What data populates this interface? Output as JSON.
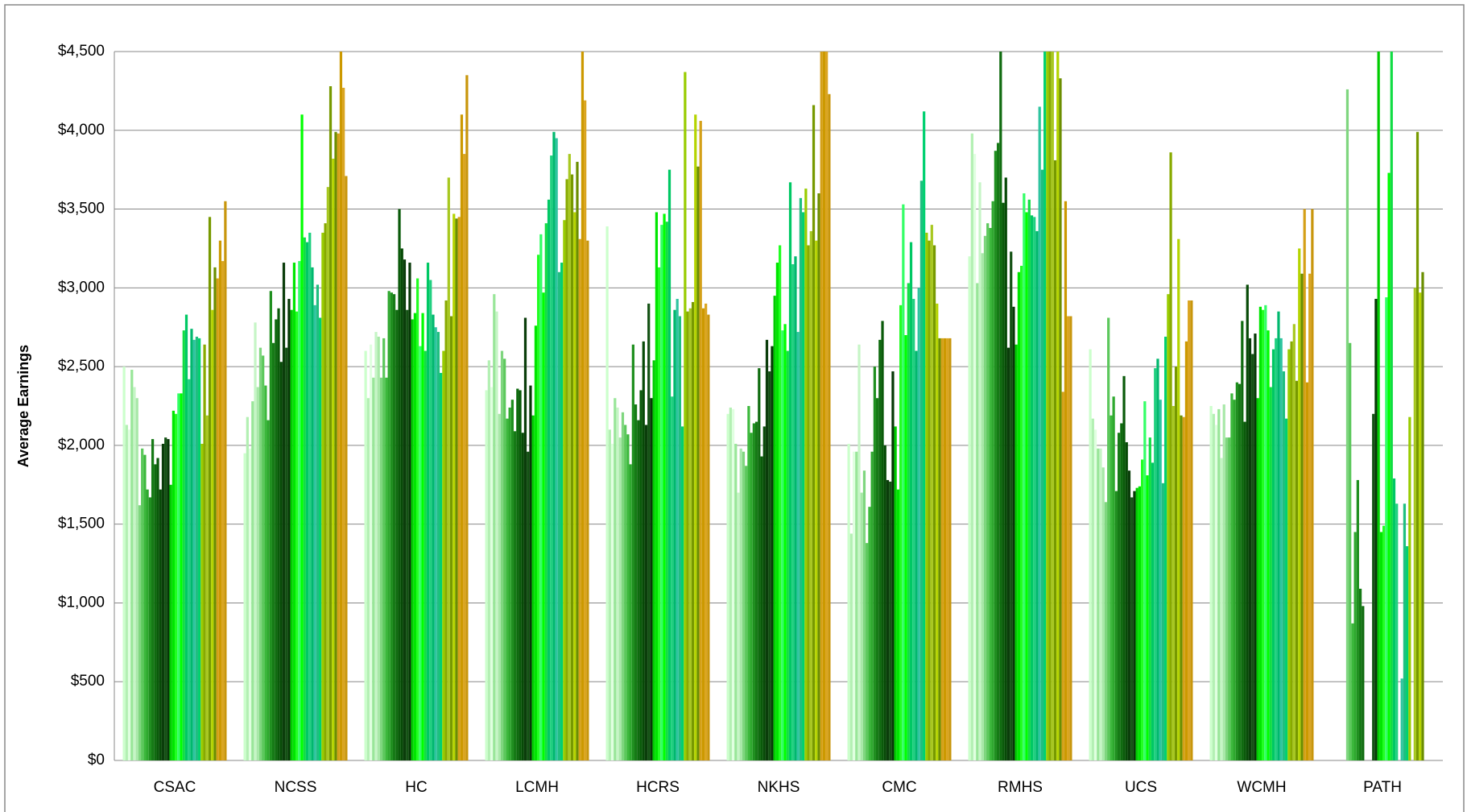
{
  "chart_data": {
    "type": "bar",
    "y_label": "Average Earnings",
    "categories": [
      "CSAC",
      "NCSS",
      "HC",
      "LCMH",
      "HCRS",
      "NKHS",
      "CMC",
      "RMHS",
      "UCS",
      "WCMH",
      "PATH"
    ],
    "ylim": [
      0,
      4500
    ],
    "yticks": [
      {
        "value": 0,
        "label": "$0"
      },
      {
        "value": 500,
        "label": "$500"
      },
      {
        "value": 1000,
        "label": "$1,000"
      },
      {
        "value": 1500,
        "label": "$1,500"
      },
      {
        "value": 2000,
        "label": "$2,000"
      },
      {
        "value": 2500,
        "label": "$2,500"
      },
      {
        "value": 3000,
        "label": "$3,000"
      },
      {
        "value": 3500,
        "label": "$3,500"
      },
      {
        "value": 4000,
        "label": "$4,000"
      },
      {
        "value": 4500,
        "label": "$4,500"
      }
    ],
    "grid": true,
    "series": [
      {
        "color": "#ccffcc",
        "values": [
          2500,
          1950,
          2600,
          2350,
          3390,
          2200,
          2010,
          3200,
          2610,
          2250,
          null
        ]
      },
      {
        "color": "#b3f0b3",
        "values": [
          2130,
          2180,
          2300,
          2540,
          2100,
          2240,
          1440,
          3980,
          2170,
          2200,
          null
        ]
      },
      {
        "color": "#e0ffe0",
        "values": [
          2100,
          1980,
          2640,
          2370,
          2010,
          2230,
          1960,
          3850,
          2100,
          2130,
          null
        ]
      },
      {
        "color": "#99e699",
        "values": [
          2480,
          2280,
          2430,
          2960,
          2300,
          2010,
          1960,
          3030,
          1980,
          2230,
          null
        ]
      },
      {
        "color": "#c6f5c6",
        "values": [
          2370,
          2780,
          2720,
          2850,
          2240,
          1700,
          2640,
          3670,
          1980,
          1920,
          null
        ]
      },
      {
        "color": "#a8e8a8",
        "values": [
          2300,
          2370,
          2690,
          2200,
          2050,
          1980,
          1700,
          3220,
          1860,
          2260,
          null
        ]
      },
      {
        "color": "#7fd67f",
        "values": [
          1620,
          2620,
          2430,
          2600,
          2210,
          1960,
          1840,
          3330,
          1640,
          2050,
          4260
        ]
      },
      {
        "color": "#5cc85c",
        "values": [
          1980,
          2570,
          2680,
          2550,
          2130,
          1870,
          1380,
          3410,
          2810,
          2050,
          2650
        ]
      },
      {
        "color": "#3cb83c",
        "values": [
          1940,
          2380,
          2430,
          2170,
          2070,
          2250,
          1610,
          3380,
          2190,
          2330,
          870
        ]
      },
      {
        "color": "#2ea82e",
        "values": [
          1720,
          2160,
          2980,
          2240,
          1880,
          2080,
          1960,
          3550,
          2310,
          2290,
          1450
        ]
      },
      {
        "color": "#1f8f1f",
        "values": [
          1670,
          2980,
          2970,
          2290,
          2640,
          2140,
          2500,
          3870,
          1710,
          2400,
          1780
        ]
      },
      {
        "color": "#167a16",
        "values": [
          2040,
          2650,
          2960,
          2090,
          2260,
          2150,
          2300,
          3920,
          2080,
          2390,
          1090
        ]
      },
      {
        "color": "#0f6b0f",
        "values": [
          1880,
          2800,
          2860,
          2360,
          2160,
          2490,
          2670,
          4500,
          2140,
          2790,
          980
        ]
      },
      {
        "color": "#0a5a0a",
        "values": [
          1920,
          2870,
          3500,
          2350,
          2350,
          1930,
          2790,
          3540,
          2440,
          2150,
          null
        ]
      },
      {
        "color": "#074a07",
        "values": [
          1720,
          2530,
          3250,
          2080,
          2660,
          2120,
          2000,
          3700,
          2020,
          3020,
          null
        ]
      },
      {
        "color": "#0b3d0b",
        "values": [
          2010,
          3160,
          3180,
          2810,
          2130,
          2670,
          1780,
          2620,
          1840,
          2680,
          null
        ]
      },
      {
        "color": "#145214",
        "values": [
          2050,
          2620,
          2860,
          1960,
          2900,
          2470,
          1770,
          3230,
          1670,
          2580,
          2200
        ]
      },
      {
        "color": "#063806",
        "values": [
          2040,
          2930,
          3160,
          2380,
          2300,
          2630,
          2470,
          2880,
          1710,
          2710,
          2930
        ]
      },
      {
        "color": "#00cc00",
        "values": [
          1750,
          2860,
          2800,
          2190,
          2540,
          2950,
          2120,
          2640,
          1730,
          2300,
          4500
        ]
      },
      {
        "color": "#00e600",
        "values": [
          2220,
          3160,
          2840,
          2760,
          3480,
          3160,
          1720,
          3100,
          1740,
          2880,
          1450
        ]
      },
      {
        "color": "#22ff22",
        "values": [
          2200,
          2850,
          3060,
          3210,
          3130,
          3270,
          2890,
          3140,
          1910,
          2860,
          1490
        ]
      },
      {
        "color": "#33ff66",
        "values": [
          2330,
          3170,
          2630,
          3340,
          3400,
          2730,
          3530,
          3600,
          2280,
          2890,
          2940
        ]
      },
      {
        "color": "#00ff00",
        "values": [
          2330,
          4100,
          2840,
          2970,
          3470,
          2770,
          2700,
          3480,
          1810,
          2730,
          3730
        ]
      },
      {
        "color": "#11dd44",
        "values": [
          2730,
          3320,
          2600,
          3410,
          3420,
          2600,
          3030,
          3560,
          2050,
          2370,
          4500
        ]
      },
      {
        "color": "#00c864",
        "values": [
          2830,
          3290,
          3160,
          3560,
          3750,
          3670,
          3290,
          3460,
          1890,
          2610,
          1790
        ]
      },
      {
        "color": "#20d080",
        "values": [
          2420,
          3350,
          3050,
          3840,
          2310,
          3150,
          2930,
          3450,
          2490,
          2680,
          1630
        ]
      },
      {
        "color": "#00b86e",
        "values": [
          2740,
          3130,
          2830,
          3990,
          2860,
          3200,
          2600,
          3360,
          2550,
          2850,
          null
        ]
      },
      {
        "color": "#2ec4a0",
        "values": [
          2670,
          2890,
          2750,
          3950,
          2930,
          2720,
          3000,
          4150,
          2290,
          2680,
          520
        ]
      },
      {
        "color": "#1fbf80",
        "values": [
          2690,
          3020,
          2720,
          3100,
          2820,
          3570,
          3680,
          3750,
          1760,
          2470,
          1630
        ]
      },
      {
        "color": "#00d070",
        "values": [
          2680,
          2810,
          2460,
          3160,
          2120,
          3480,
          4120,
          4500,
          2690,
          2170,
          1360
        ]
      },
      {
        "color": "#99cc00",
        "values": [
          2010,
          3350,
          2600,
          3430,
          4370,
          3630,
          3350,
          4500,
          2960,
          2610,
          2180
        ]
      },
      {
        "color": "#88aa00",
        "values": [
          2640,
          3410,
          2920,
          3690,
          2850,
          3270,
          3300,
          4500,
          3860,
          2660,
          null
        ]
      },
      {
        "color": "#a8c820",
        "values": [
          2190,
          3640,
          3700,
          3850,
          2870,
          3360,
          3400,
          4500,
          2250,
          2770,
          3000
        ]
      },
      {
        "color": "#779900",
        "values": [
          3450,
          4280,
          2820,
          3720,
          2910,
          4160,
          3270,
          3810,
          2500,
          2410,
          3990
        ]
      },
      {
        "color": "#b5d400",
        "values": [
          2860,
          3820,
          3470,
          3480,
          4100,
          3300,
          2900,
          4500,
          3310,
          3250,
          2970
        ]
      },
      {
        "color": "#6b8e00",
        "values": [
          3130,
          3990,
          3440,
          3800,
          3770,
          3600,
          2680,
          4330,
          2190,
          3090,
          3100
        ]
      },
      {
        "color": "#d4a017",
        "values": [
          3060,
          3980,
          3450,
          3310,
          4060,
          4500,
          2680,
          2340,
          2180,
          3500,
          null
        ]
      },
      {
        "color": "#cc9900",
        "values": [
          3300,
          4500,
          4100,
          4500,
          2870,
          4500,
          2680,
          3550,
          2660,
          2400,
          null
        ]
      },
      {
        "color": "#daa520",
        "values": [
          3170,
          4270,
          3850,
          4190,
          2900,
          4500,
          2680,
          2820,
          2920,
          3090,
          null
        ]
      },
      {
        "color": "#c8960c",
        "values": [
          3550,
          3710,
          4350,
          3300,
          2830,
          4230,
          2680,
          2820,
          2920,
          3500,
          null
        ]
      }
    ]
  }
}
